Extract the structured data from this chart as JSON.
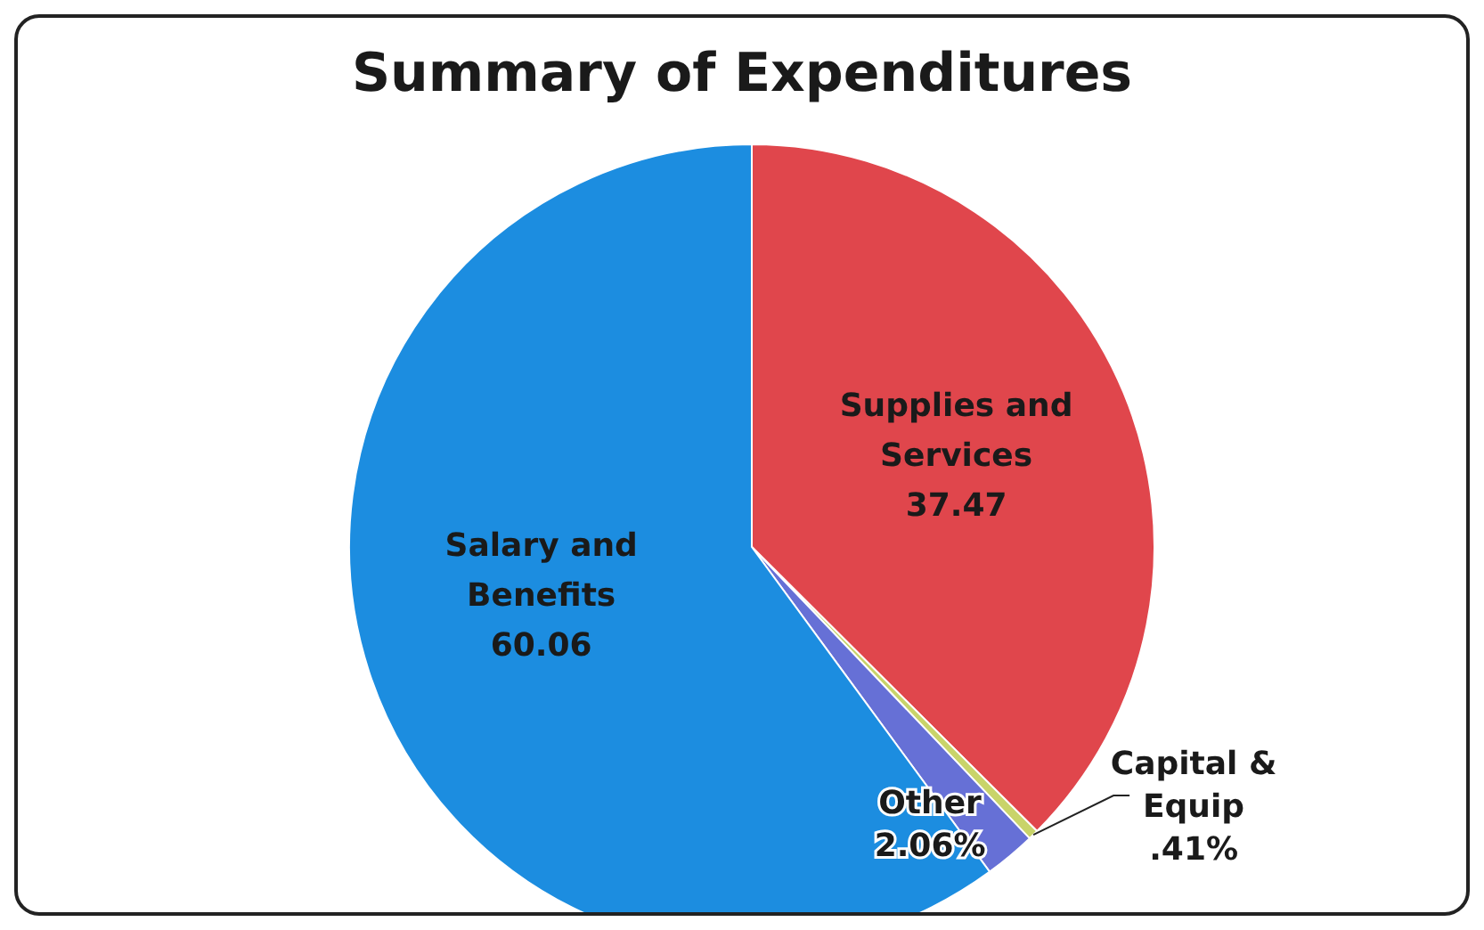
{
  "chart_data": {
    "type": "pie",
    "title": "Summary of Expenditures",
    "categories": [
      "Supplies and Services",
      "Capital & Equip",
      "Other",
      "Salary and Benefits"
    ],
    "values": [
      37.47,
      0.41,
      2.06,
      60.06
    ],
    "colors": [
      "#e0464c",
      "#c9d46a",
      "#6670d6",
      "#1c8de0"
    ],
    "value_labels": [
      "37.47",
      ".41%",
      "2.06%",
      "60.06"
    ]
  }
}
